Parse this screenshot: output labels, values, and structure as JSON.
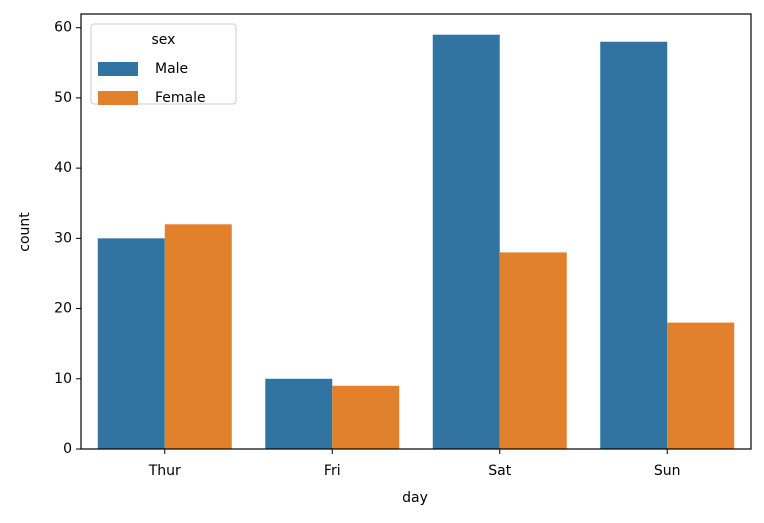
{
  "chart_data": {
    "type": "bar",
    "x_label": "day",
    "y_label": "count",
    "categories": [
      "Thur",
      "Fri",
      "Sat",
      "Sun"
    ],
    "legend_title": "sex",
    "legend": "upper left",
    "series": [
      {
        "name": "Male",
        "color": "#3274a1",
        "values": [
          30,
          10,
          59,
          58
        ]
      },
      {
        "name": "Female",
        "color": "#e1812c",
        "values": [
          32,
          9,
          28,
          18
        ]
      }
    ],
    "ylim": [
      0,
      61.95
    ],
    "yticks": [
      0,
      10,
      20,
      30,
      40,
      50,
      60
    ],
    "grid": false
  }
}
